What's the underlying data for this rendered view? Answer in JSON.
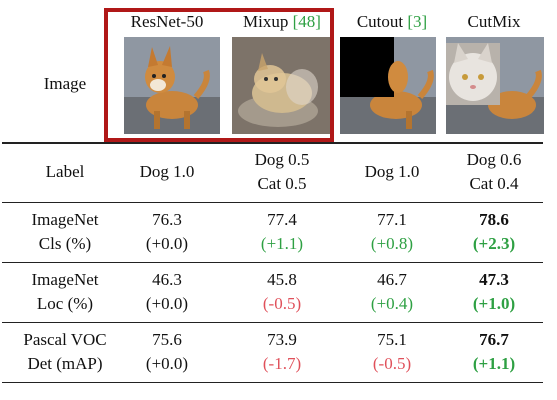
{
  "columns": [
    {
      "name": "ResNet-50",
      "ref": ""
    },
    {
      "name": "Mixup",
      "ref": "[48]"
    },
    {
      "name": "Cutout",
      "ref": "[3]"
    },
    {
      "name": "CutMix",
      "ref": ""
    }
  ],
  "rows": {
    "image": {
      "label": "Image"
    },
    "label": {
      "header": "Label",
      "cells": [
        {
          "l1": "Dog 1.0",
          "l2": ""
        },
        {
          "l1": "Dog 0.5",
          "l2": "Cat 0.5"
        },
        {
          "l1": "Dog 1.0",
          "l2": ""
        },
        {
          "l1": "Dog 0.6",
          "l2": "Cat 0.4"
        }
      ]
    },
    "cls": {
      "header1": "ImageNet",
      "header2": "Cls (%)",
      "cells": [
        {
          "value": "76.3",
          "delta": "(+0.0)",
          "delta_color": "#111111",
          "bold": false
        },
        {
          "value": "77.4",
          "delta": "(+1.1)",
          "delta_color": "#2ea043",
          "bold": false
        },
        {
          "value": "77.1",
          "delta": "(+0.8)",
          "delta_color": "#2ea043",
          "bold": false
        },
        {
          "value": "78.6",
          "delta": "(+2.3)",
          "delta_color": "#2ea043",
          "bold": true
        }
      ]
    },
    "loc": {
      "header1": "ImageNet",
      "header2": "Loc (%)",
      "cells": [
        {
          "value": "46.3",
          "delta": "(+0.0)",
          "delta_color": "#111111",
          "bold": false
        },
        {
          "value": "45.8",
          "delta": "(-0.5)",
          "delta_color": "#e0505a",
          "bold": false
        },
        {
          "value": "46.7",
          "delta": "(+0.4)",
          "delta_color": "#2ea043",
          "bold": false
        },
        {
          "value": "47.3",
          "delta": "(+1.0)",
          "delta_color": "#2ea043",
          "bold": true
        }
      ]
    },
    "det": {
      "header1": "Pascal VOC",
      "header2": "Det (mAP)",
      "cells": [
        {
          "value": "75.6",
          "delta": "(+0.0)",
          "delta_color": "#111111",
          "bold": false
        },
        {
          "value": "73.9",
          "delta": "(-1.7)",
          "delta_color": "#e0505a",
          "bold": false
        },
        {
          "value": "75.1",
          "delta": "(-0.5)",
          "delta_color": "#e0505a",
          "bold": false
        },
        {
          "value": "76.7",
          "delta": "(+1.1)",
          "delta_color": "#2ea043",
          "bold": true
        }
      ]
    }
  },
  "colors": {
    "highlight_box": "#b01818",
    "ref_green": "#2ea043",
    "gain": "#2ea043",
    "loss": "#e0505a"
  }
}
